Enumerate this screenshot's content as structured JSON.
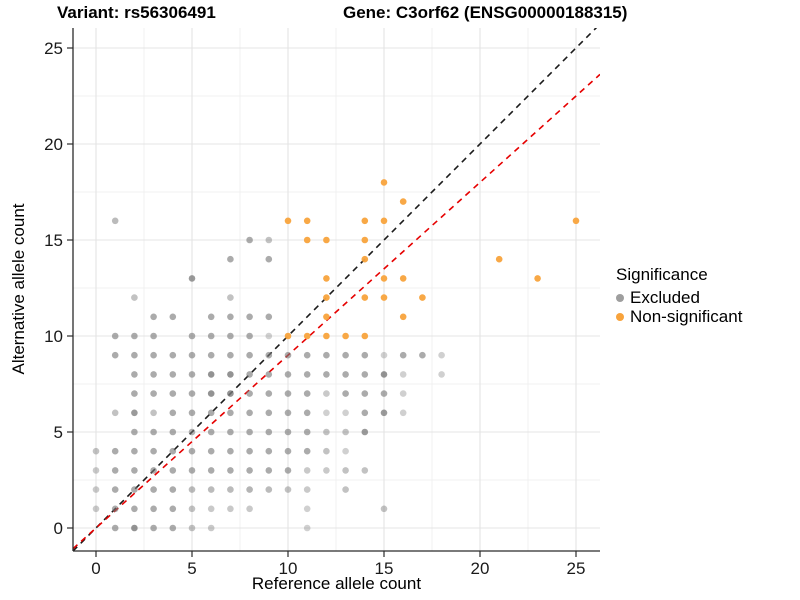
{
  "chart_data": {
    "type": "scatter",
    "title_left": "Variant: rs56306491",
    "title_right": "Gene: C3orf62 (ENSG00000188315)",
    "xlabel": "Reference allele count",
    "ylabel": "Alternative allele count",
    "xlim": [
      -1.2,
      26.25
    ],
    "ylim": [
      -1.2,
      26.05
    ],
    "x_ticks": [
      0,
      5,
      10,
      15,
      20,
      25
    ],
    "y_ticks": [
      0,
      5,
      10,
      15,
      20,
      25
    ],
    "minor_ticks": [
      2.5,
      7.5,
      12.5,
      17.5,
      22.5
    ],
    "grid": true,
    "legend": {
      "title": "Significance",
      "position": "right",
      "items": [
        {
          "label": "Excluded",
          "color": "#9e9e9e"
        },
        {
          "label": "Non-significant",
          "color": "#f8a33c"
        }
      ]
    },
    "ablines": [
      {
        "name": "identity-line",
        "slope": 1,
        "intercept": 0,
        "color": "#1b1b1b",
        "style": "dashed"
      },
      {
        "name": "expected-ratio-line",
        "slope": 0.9,
        "intercept": 0,
        "color": "#e60000",
        "style": "dashed"
      }
    ],
    "series": [
      {
        "name": "Excluded",
        "color": "#787878",
        "default_opacity": 0.62,
        "points": [
          [
            1,
            0
          ],
          [
            2,
            0,
            0.8
          ],
          [
            3,
            0
          ],
          [
            4,
            0
          ],
          [
            5,
            0,
            0.45
          ],
          [
            6,
            0,
            0.4
          ],
          [
            11,
            0,
            0.35
          ],
          [
            0,
            1,
            0.4
          ],
          [
            1,
            1
          ],
          [
            2,
            1
          ],
          [
            3,
            1
          ],
          [
            4,
            1
          ],
          [
            5,
            1,
            0.45
          ],
          [
            6,
            1,
            0.4
          ],
          [
            7,
            1,
            0.4
          ],
          [
            8,
            1,
            0.4
          ],
          [
            11,
            1,
            0.35
          ],
          [
            15,
            1,
            0.45
          ],
          [
            0,
            2,
            0.4
          ],
          [
            1,
            2
          ],
          [
            2,
            2
          ],
          [
            3,
            2
          ],
          [
            4,
            2
          ],
          [
            5,
            2,
            0.5
          ],
          [
            6,
            2,
            0.5
          ],
          [
            7,
            2,
            0.5
          ],
          [
            8,
            2,
            0.55
          ],
          [
            9,
            2,
            0.5
          ],
          [
            10,
            2,
            0.45
          ],
          [
            11,
            2,
            0.4
          ],
          [
            13,
            2,
            0.45
          ],
          [
            0,
            3,
            0.4
          ],
          [
            1,
            3
          ],
          [
            2,
            3
          ],
          [
            3,
            3
          ],
          [
            4,
            3
          ],
          [
            5,
            3
          ],
          [
            6,
            3
          ],
          [
            7,
            3
          ],
          [
            8,
            3
          ],
          [
            9,
            3
          ],
          [
            10,
            3
          ],
          [
            11,
            3,
            0.4
          ],
          [
            12,
            3,
            0.4
          ],
          [
            13,
            3,
            0.45
          ],
          [
            14,
            3,
            0.45
          ],
          [
            0,
            4,
            0.45
          ],
          [
            1,
            4
          ],
          [
            2,
            4
          ],
          [
            3,
            4
          ],
          [
            4,
            4
          ],
          [
            5,
            4
          ],
          [
            6,
            4
          ],
          [
            7,
            4
          ],
          [
            8,
            4
          ],
          [
            9,
            4
          ],
          [
            10,
            4
          ],
          [
            11,
            4
          ],
          [
            12,
            4,
            0.45
          ],
          [
            13,
            4,
            0.35
          ],
          [
            2,
            5
          ],
          [
            3,
            5
          ],
          [
            4,
            5
          ],
          [
            5,
            5,
            0.55
          ],
          [
            6,
            5
          ],
          [
            7,
            5
          ],
          [
            8,
            5
          ],
          [
            9,
            5
          ],
          [
            10,
            5
          ],
          [
            11,
            5
          ],
          [
            12,
            5,
            0.45
          ],
          [
            13,
            5,
            0.45
          ],
          [
            14,
            5,
            0.75
          ],
          [
            1,
            6,
            0.45
          ],
          [
            2,
            6,
            0.75
          ],
          [
            3,
            6,
            0.45
          ],
          [
            4,
            6
          ],
          [
            5,
            6
          ],
          [
            6,
            6
          ],
          [
            7,
            6
          ],
          [
            8,
            6
          ],
          [
            9,
            6
          ],
          [
            10,
            6
          ],
          [
            11,
            6
          ],
          [
            12,
            6,
            0.35
          ],
          [
            13,
            6,
            0.35
          ],
          [
            14,
            6
          ],
          [
            15,
            6,
            0.75
          ],
          [
            16,
            6,
            0.35
          ],
          [
            2,
            7
          ],
          [
            3,
            7
          ],
          [
            4,
            7
          ],
          [
            5,
            7
          ],
          [
            6,
            7,
            0.8
          ],
          [
            7,
            7,
            0.8
          ],
          [
            8,
            7
          ],
          [
            9,
            7
          ],
          [
            10,
            7
          ],
          [
            11,
            7
          ],
          [
            12,
            7,
            0.4
          ],
          [
            13,
            7
          ],
          [
            14,
            7
          ],
          [
            15,
            7
          ],
          [
            16,
            7,
            0.35
          ],
          [
            2,
            8
          ],
          [
            3,
            8
          ],
          [
            4,
            8
          ],
          [
            5,
            8
          ],
          [
            6,
            8,
            0.8
          ],
          [
            7,
            8,
            0.8
          ],
          [
            8,
            8
          ],
          [
            9,
            8
          ],
          [
            10,
            8
          ],
          [
            11,
            8
          ],
          [
            12,
            8
          ],
          [
            13,
            8
          ],
          [
            14,
            8
          ],
          [
            15,
            8,
            0.8
          ],
          [
            16,
            8,
            0.35
          ],
          [
            18,
            8,
            0.35
          ],
          [
            1,
            9
          ],
          [
            2,
            9
          ],
          [
            3,
            9
          ],
          [
            4,
            9
          ],
          [
            5,
            9
          ],
          [
            6,
            9
          ],
          [
            7,
            9
          ],
          [
            8,
            9
          ],
          [
            9,
            9
          ],
          [
            10,
            9
          ],
          [
            11,
            9
          ],
          [
            12,
            9
          ],
          [
            13,
            9
          ],
          [
            14,
            9
          ],
          [
            15,
            9,
            0.35
          ],
          [
            16,
            9
          ],
          [
            17,
            9
          ],
          [
            18,
            9,
            0.35
          ],
          [
            1,
            10
          ],
          [
            2,
            10
          ],
          [
            3,
            10
          ],
          [
            5,
            10
          ],
          [
            6,
            10
          ],
          [
            7,
            10
          ],
          [
            8,
            10
          ],
          [
            9,
            10,
            0.35
          ],
          [
            3,
            11
          ],
          [
            4,
            11
          ],
          [
            6,
            11
          ],
          [
            7,
            11
          ],
          [
            8,
            11
          ],
          [
            9,
            11
          ],
          [
            2,
            12,
            0.45
          ],
          [
            7,
            12,
            0.45
          ],
          [
            5,
            13,
            0.75
          ],
          [
            7,
            14
          ],
          [
            9,
            14
          ],
          [
            8,
            15
          ],
          [
            9,
            15,
            0.45
          ],
          [
            1,
            16,
            0.5
          ]
        ]
      },
      {
        "name": "Non-significant",
        "color": "#f8a33c",
        "default_opacity": 0.95,
        "points": [
          [
            10,
            10
          ],
          [
            11,
            10
          ],
          [
            12,
            10
          ],
          [
            13,
            10
          ],
          [
            14,
            10
          ],
          [
            12,
            11
          ],
          [
            16,
            11
          ],
          [
            12,
            12
          ],
          [
            14,
            12
          ],
          [
            15,
            12
          ],
          [
            17,
            12
          ],
          [
            12,
            13
          ],
          [
            15,
            13
          ],
          [
            16,
            13
          ],
          [
            23,
            13
          ],
          [
            14,
            14
          ],
          [
            21,
            14
          ],
          [
            11,
            15
          ],
          [
            12,
            15
          ],
          [
            14,
            15
          ],
          [
            10,
            16
          ],
          [
            11,
            16
          ],
          [
            14,
            16
          ],
          [
            15,
            16
          ],
          [
            25,
            16
          ],
          [
            16,
            17
          ],
          [
            15,
            18
          ]
        ]
      }
    ],
    "style": {
      "grid_major_color": "#e4e4e4",
      "grid_minor_color": "#f0f0f0",
      "axis_color": "#2b2b2b",
      "background": "#ffffff"
    }
  }
}
